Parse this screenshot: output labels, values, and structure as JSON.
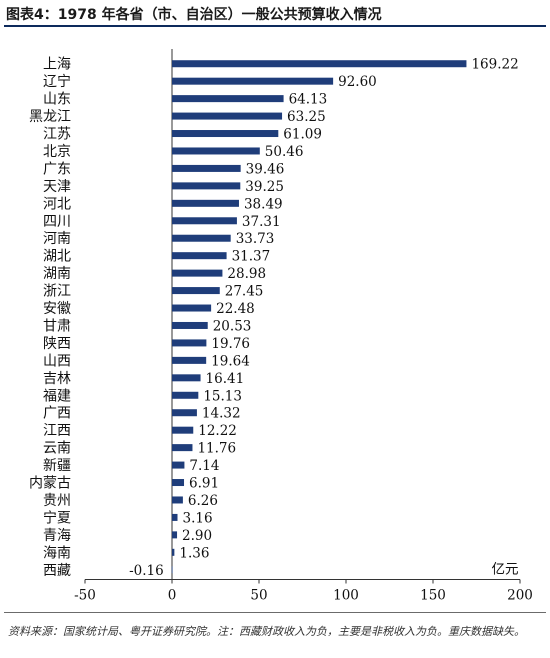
{
  "header": {
    "title": "图表4：1978 年各省（市、自治区）一般公共预算收入情况"
  },
  "footer": {
    "source": "资料来源：国家统计局、粤开证券研究院。注：西藏财政收入为负，主要是非税收入为负。重庆数据缺失。"
  },
  "colors": {
    "bar": "#1f3d7a",
    "title_rule": "#0d2a5c"
  },
  "chart_data": {
    "type": "bar",
    "orientation": "horizontal",
    "title": "",
    "unit_label": "亿元",
    "categories": [
      "上海",
      "辽宁",
      "山东",
      "黑龙江",
      "江苏",
      "北京",
      "广东",
      "天津",
      "河北",
      "四川",
      "河南",
      "湖北",
      "湖南",
      "浙江",
      "安徽",
      "甘肃",
      "陕西",
      "山西",
      "吉林",
      "福建",
      "广西",
      "江西",
      "云南",
      "新疆",
      "内蒙古",
      "贵州",
      "宁夏",
      "青海",
      "海南",
      "西藏"
    ],
    "values": [
      169.22,
      92.6,
      64.13,
      63.25,
      61.09,
      50.46,
      39.46,
      39.25,
      38.49,
      37.31,
      33.73,
      31.37,
      28.98,
      27.45,
      22.48,
      20.53,
      19.76,
      19.64,
      16.41,
      15.13,
      14.32,
      12.22,
      11.76,
      7.14,
      6.91,
      6.26,
      3.16,
      2.9,
      1.36,
      -0.16
    ],
    "value_labels": [
      "169.22",
      "92.60",
      "64.13",
      "63.25",
      "61.09",
      "50.46",
      "39.46",
      "39.25",
      "38.49",
      "37.31",
      "33.73",
      "31.37",
      "28.98",
      "27.45",
      "22.48",
      "20.53",
      "19.76",
      "19.64",
      "16.41",
      "15.13",
      "14.32",
      "12.22",
      "11.76",
      "7.14",
      "6.91",
      "6.26",
      "3.16",
      "2.90",
      "1.36",
      "-0.16"
    ],
    "xlim": [
      -50,
      200
    ],
    "xticks": [
      -50,
      0,
      50,
      100,
      150,
      200
    ],
    "grid": false,
    "legend": "none"
  }
}
